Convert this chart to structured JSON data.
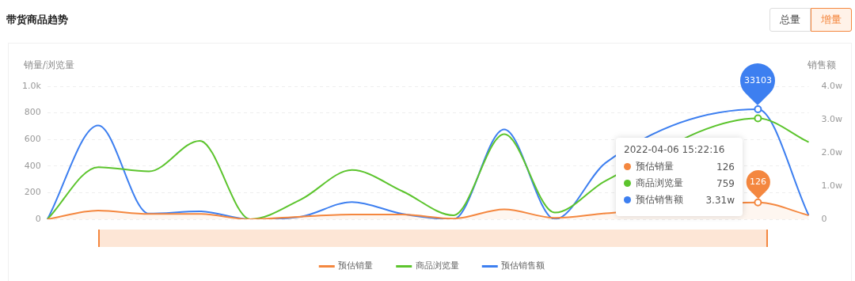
{
  "chart_data": {
    "type": "line",
    "title": "带货商品趋势",
    "ylabel": "销量/浏览量",
    "y2label": "销售额",
    "categories": [
      null,
      null,
      null,
      null,
      null,
      null,
      null,
      null,
      null,
      null,
      null,
      null,
      null,
      null,
      null,
      null
    ],
    "series": [
      {
        "name": "预估销量",
        "type": "area",
        "color": "#f4873f",
        "values": [
          0,
          65,
          40,
          40,
          0,
          20,
          35,
          35,
          5,
          75,
          10,
          45,
          null,
          null,
          126,
          30
        ],
        "value_labels": [
          null,
          null,
          null,
          null,
          null,
          null,
          null,
          null,
          null,
          null,
          null,
          null,
          null,
          null,
          "126",
          null
        ]
      },
      {
        "name": "商品浏览量",
        "type": "line",
        "color": "#5cc42d",
        "values": [
          0,
          392,
          360,
          590,
          0,
          150,
          370,
          210,
          30,
          640,
          50,
          290,
          null,
          null,
          759,
          580
        ]
      },
      {
        "name": "预估销售额",
        "type": "line",
        "axis": "y2",
        "color": "#3d7ff0",
        "values": [
          0,
          2.82,
          0.17,
          0.24,
          0,
          0.08,
          0.52,
          0.16,
          0,
          2.7,
          0,
          1.7,
          null,
          null,
          3.31,
          0.12
        ]
      }
    ],
    "ylim": [
      0,
      1000
    ],
    "yticks": [
      0,
      200,
      400,
      600,
      800,
      {
        "value": 1000,
        "label": "1.0k"
      }
    ],
    "y2lim": [
      0,
      4
    ],
    "y2ticks": [
      0,
      {
        "value": 1,
        "label": "1.0w"
      },
      {
        "value": 2,
        "label": "2.0w"
      },
      {
        "value": 3,
        "label": "3.0w"
      },
      {
        "value": 4,
        "label": "4.0w"
      }
    ],
    "grid": "y",
    "legend": "bottom",
    "tick_labels": "y",
    "annotations": [
      "总量",
      "增量",
      "2022-04-06 15:22:16",
      "126",
      "759",
      "3.31w",
      "33103"
    ]
  }
}
